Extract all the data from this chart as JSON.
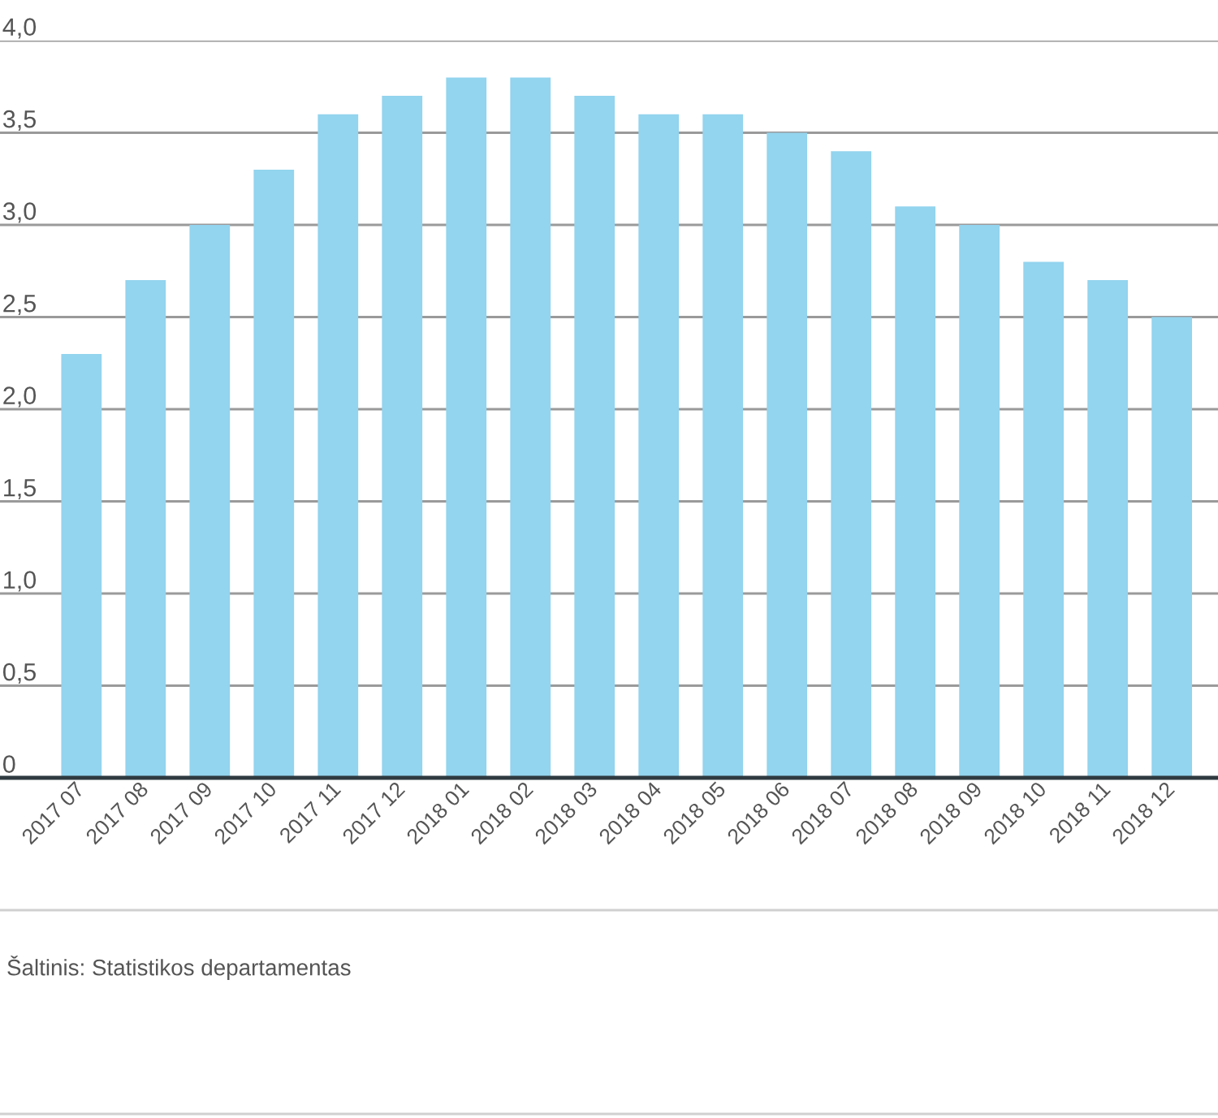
{
  "chart_data": {
    "type": "bar",
    "categories": [
      "2017 07",
      "2017 08",
      "2017 09",
      "2017 10",
      "2017 11",
      "2017 12",
      "2018 01",
      "2018 02",
      "2018 03",
      "2018 04",
      "2018 05",
      "2018 06",
      "2018 07",
      "2018 08",
      "2018 09",
      "2018 10",
      "2018 11",
      "2018 12"
    ],
    "values": [
      2.3,
      2.7,
      3.0,
      3.3,
      3.6,
      3.7,
      3.8,
      3.8,
      3.7,
      3.6,
      3.6,
      3.5,
      3.4,
      3.1,
      3.0,
      2.8,
      2.7,
      2.5
    ],
    "color": "#93d4ee",
    "ylim": [
      0,
      4
    ],
    "yticks": [
      0,
      {
        "value": 0.5,
        "label": "0,5"
      },
      {
        "value": 1,
        "label": "1,0"
      },
      {
        "value": 1.5,
        "label": "1,5"
      },
      {
        "value": 2,
        "label": "2,0"
      },
      {
        "value": 2.5,
        "label": "2,5"
      },
      {
        "value": 3,
        "label": "3,0"
      },
      {
        "value": 3.5,
        "label": "3,5"
      },
      {
        "value": 4,
        "label": "4,0"
      }
    ],
    "grid": "y",
    "annotations": [
      "Šaltinis: Statistikos departamentas"
    ]
  }
}
